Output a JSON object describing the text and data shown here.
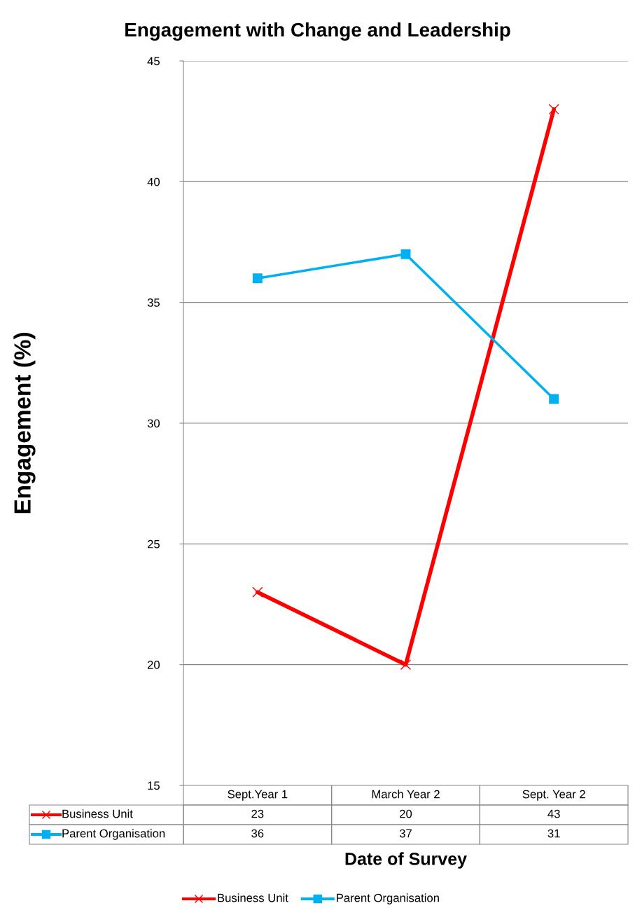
{
  "chart_data": {
    "type": "line",
    "title": "Engagement with Change and Leadership",
    "xlabel": "Date of Survey",
    "ylabel": "Engagement (%)",
    "categories": [
      "Sept.Year 1",
      "March Year 2",
      "Sept. Year 2"
    ],
    "series": [
      {
        "name": "Business Unit",
        "color": "#ff0000",
        "marker": "cross",
        "values": [
          23,
          20,
          43
        ]
      },
      {
        "name": "Parent Organisation",
        "color": "#00b0f0",
        "marker": "square",
        "values": [
          36,
          37,
          31
        ]
      }
    ],
    "ylim": [
      15,
      45
    ],
    "yticks": [
      15,
      20,
      25,
      30,
      35,
      40,
      45
    ],
    "grid": "y",
    "legend": "bottom",
    "data_labels": true,
    "line_style": "solid"
  }
}
